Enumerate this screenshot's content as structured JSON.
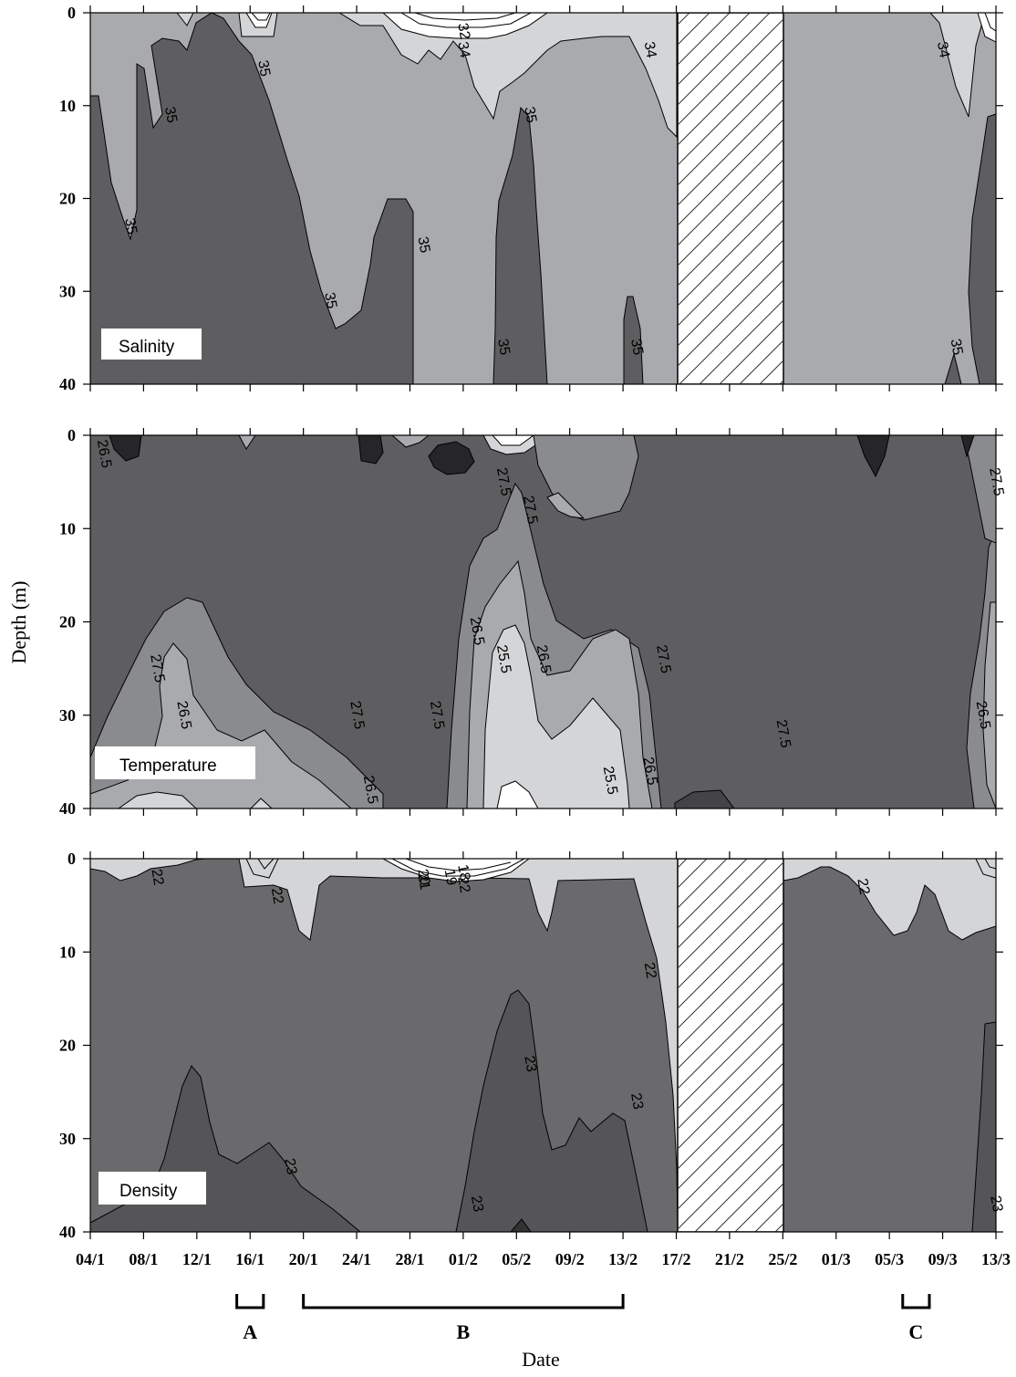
{
  "chart_data": {
    "type": "contour",
    "xlabel": "Date",
    "ylabel": "Depth (m)",
    "x_ticks": [
      "04/1",
      "08/1",
      "12/1",
      "16/1",
      "20/1",
      "24/1",
      "28/1",
      "01/2",
      "05/2",
      "09/2",
      "13/2",
      "17/2",
      "21/2",
      "25/2",
      "01/3",
      "05/3",
      "09/3",
      "13/3"
    ],
    "y_ticks": [
      "0",
      "10",
      "20",
      "30",
      "40"
    ],
    "ylim": [
      0,
      40
    ],
    "y_inverted": true,
    "gap": {
      "from": "17/2",
      "to": "25/2",
      "panels": [
        "Salinity",
        "Density"
      ]
    },
    "periods": [
      {
        "label": "A",
        "from": "15/1",
        "to": "17/1"
      },
      {
        "label": "B",
        "from": "20/1",
        "to": "13/2"
      },
      {
        "label": "C",
        "from": "06/3",
        "to": "08/3"
      }
    ],
    "panels": [
      {
        "name": "Salinity",
        "contour_labels": [
          {
            "text": "32",
            "date": "01/2",
            "depth": 2
          },
          {
            "text": "34",
            "date": "01/2",
            "depth": 4
          },
          {
            "text": "34",
            "date": "15/2",
            "depth": 4
          },
          {
            "text": "34",
            "date": "09/3",
            "depth": 4
          },
          {
            "text": "35",
            "date": "17/1",
            "depth": 6
          },
          {
            "text": "35",
            "date": "10/1",
            "depth": 11
          },
          {
            "text": "35",
            "date": "07/1",
            "depth": 23
          },
          {
            "text": "35",
            "date": "29/1",
            "depth": 25
          },
          {
            "text": "35",
            "date": "22/1",
            "depth": 31
          },
          {
            "text": "35",
            "date": "06/2",
            "depth": 11
          },
          {
            "text": "35",
            "date": "04/2",
            "depth": 36
          },
          {
            "text": "35",
            "date": "14/2",
            "depth": 36
          },
          {
            "text": "35",
            "date": "10/3",
            "depth": 36
          }
        ]
      },
      {
        "name": "Temperature",
        "contour_labels": [
          {
            "text": "26.5",
            "date": "05/1",
            "depth": 2
          },
          {
            "text": "27.5",
            "date": "04/2",
            "depth": 5
          },
          {
            "text": "27.5",
            "date": "06/2",
            "depth": 8
          },
          {
            "text": "27.5",
            "date": "13/3",
            "depth": 5
          },
          {
            "text": "26.5",
            "date": "02/2",
            "depth": 21
          },
          {
            "text": "25.5",
            "date": "04/2",
            "depth": 24
          },
          {
            "text": "26.5",
            "date": "07/2",
            "depth": 24
          },
          {
            "text": "27.5",
            "date": "09/1",
            "depth": 25
          },
          {
            "text": "27.5",
            "date": "16/2",
            "depth": 24
          },
          {
            "text": "26.5",
            "date": "11/1",
            "depth": 30
          },
          {
            "text": "27.5",
            "date": "24/1",
            "depth": 30
          },
          {
            "text": "27.5",
            "date": "30/1",
            "depth": 30
          },
          {
            "text": "27.5",
            "date": "25/2",
            "depth": 32
          },
          {
            "text": "26.5",
            "date": "12/3",
            "depth": 30
          },
          {
            "text": "26.5",
            "date": "15/2",
            "depth": 36
          },
          {
            "text": "25.5",
            "date": "12/2",
            "depth": 37
          },
          {
            "text": "26.5",
            "date": "25/1",
            "depth": 38
          }
        ]
      },
      {
        "name": "Density",
        "contour_labels": [
          {
            "text": "22",
            "date": "09/1",
            "depth": 2
          },
          {
            "text": "20",
            "date": "29/1",
            "depth": 2
          },
          {
            "text": "21",
            "date": "29/1",
            "depth": 2.5
          },
          {
            "text": "19",
            "date": "31/1",
            "depth": 2
          },
          {
            "text": "18",
            "date": "01/2",
            "depth": 1.5
          },
          {
            "text": "22",
            "date": "01/2",
            "depth": 2.8
          },
          {
            "text": "22",
            "date": "18/1",
            "depth": 4
          },
          {
            "text": "22",
            "date": "03/3",
            "depth": 3
          },
          {
            "text": "22",
            "date": "15/2",
            "depth": 12
          },
          {
            "text": "23",
            "date": "06/2",
            "depth": 22
          },
          {
            "text": "23",
            "date": "14/2",
            "depth": 26
          },
          {
            "text": "23",
            "date": "19/1",
            "depth": 33
          },
          {
            "text": "23",
            "date": "02/2",
            "depth": 37
          },
          {
            "text": "23",
            "date": "13/3",
            "depth": 37
          }
        ]
      }
    ]
  }
}
